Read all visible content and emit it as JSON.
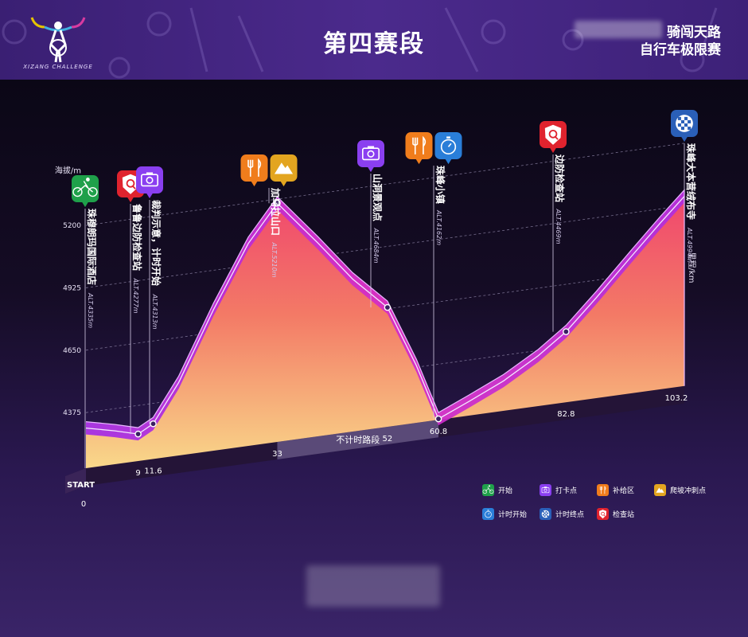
{
  "header": {
    "title": "第四赛段",
    "brand_line1": "骑闯天路",
    "brand_line2": "自行车极限赛",
    "logo_text": "XIZANG CHALLENGE"
  },
  "chart_data": {
    "type": "area",
    "title": "第四赛段",
    "ylabel": "海拔/m",
    "xlabel": "里程/km",
    "y_ticks": [
      4375,
      4650,
      4925,
      5200
    ],
    "x_start_label": "START",
    "x_zero_label": "0",
    "distance_labels": [
      "9",
      "11.6",
      "33",
      "52",
      "60.8",
      "82.8",
      "103.2"
    ],
    "untimed_section_label": "不计时路段",
    "profile": [
      {
        "km": 0,
        "alt": 4335
      },
      {
        "km": 5,
        "alt": 4305
      },
      {
        "km": 9,
        "alt": 4277
      },
      {
        "km": 11.6,
        "alt": 4313
      },
      {
        "km": 16,
        "alt": 4480
      },
      {
        "km": 22,
        "alt": 4780
      },
      {
        "km": 28,
        "alt": 5050
      },
      {
        "km": 33,
        "alt": 5210
      },
      {
        "km": 40,
        "alt": 5010
      },
      {
        "km": 46,
        "alt": 4830
      },
      {
        "km": 52,
        "alt": 4684
      },
      {
        "km": 57,
        "alt": 4410
      },
      {
        "km": 60.8,
        "alt": 4162
      },
      {
        "km": 66,
        "alt": 4220
      },
      {
        "km": 72,
        "alt": 4290
      },
      {
        "km": 78,
        "alt": 4380
      },
      {
        "km": 82.8,
        "alt": 4469
      },
      {
        "km": 88,
        "alt": 4600
      },
      {
        "km": 94,
        "alt": 4760
      },
      {
        "km": 99,
        "alt": 4890
      },
      {
        "km": 103.2,
        "alt": 4994
      }
    ],
    "waypoints": [
      {
        "km": 0,
        "alt": 4335,
        "name": "珠穆朗玛国际酒店",
        "alt_label": "ALT.4335m",
        "icons": [
          "start"
        ]
      },
      {
        "km": 9,
        "alt": 4277,
        "name": "鲁鲁边防检查站",
        "alt_label": "ALT.4277m",
        "icons": [
          "checkpoint"
        ]
      },
      {
        "km": 11.6,
        "alt": 4313,
        "name": "裁判示意，计时开始",
        "alt_label": "ALT.4313m",
        "icons": [
          "photo"
        ]
      },
      {
        "km": 33,
        "alt": 5210,
        "name": "加乌拉山口",
        "alt_label": "ALT.5210m",
        "icons": [
          "supply",
          "climb"
        ]
      },
      {
        "km": 52,
        "alt": 4684,
        "name": "山洞景观点",
        "alt_label": "ALT.4684m",
        "icons": [
          "photo"
        ]
      },
      {
        "km": 60.8,
        "alt": 4162,
        "name": "珠峰小镇",
        "alt_label": "ALT.4162m",
        "icons": [
          "supply",
          "timer"
        ]
      },
      {
        "km": 82.8,
        "alt": 4469,
        "name": "边防检查站",
        "alt_label": "ALT.4469m",
        "icons": [
          "checkpoint"
        ]
      },
      {
        "km": 103.2,
        "alt": 4994,
        "name": "珠峰大本营绒布寺",
        "alt_label": "ALT.4994m",
        "icons": [
          "finish"
        ]
      }
    ]
  },
  "legend": [
    {
      "key": "start",
      "label": "开始",
      "color": "#1fa04a",
      "icon": "bike-icon"
    },
    {
      "key": "photo",
      "label": "打卡点",
      "color": "#8a3ff0",
      "icon": "camera-icon"
    },
    {
      "key": "supply",
      "label": "补给区",
      "color": "#f07d1c",
      "icon": "fork-knife-icon"
    },
    {
      "key": "climb",
      "label": "爬坡冲刺点",
      "color": "#e3a520",
      "icon": "mountain-icon"
    },
    {
      "key": "timer",
      "label": "计时开始",
      "color": "#2a7ed8",
      "icon": "stopwatch-icon"
    },
    {
      "key": "finish",
      "label": "计时终点",
      "color": "#2a5fb8",
      "icon": "checkered-flag-icon"
    },
    {
      "key": "checkpoint",
      "label": "检查站",
      "color": "#e0232e",
      "icon": "shield-icon"
    }
  ]
}
